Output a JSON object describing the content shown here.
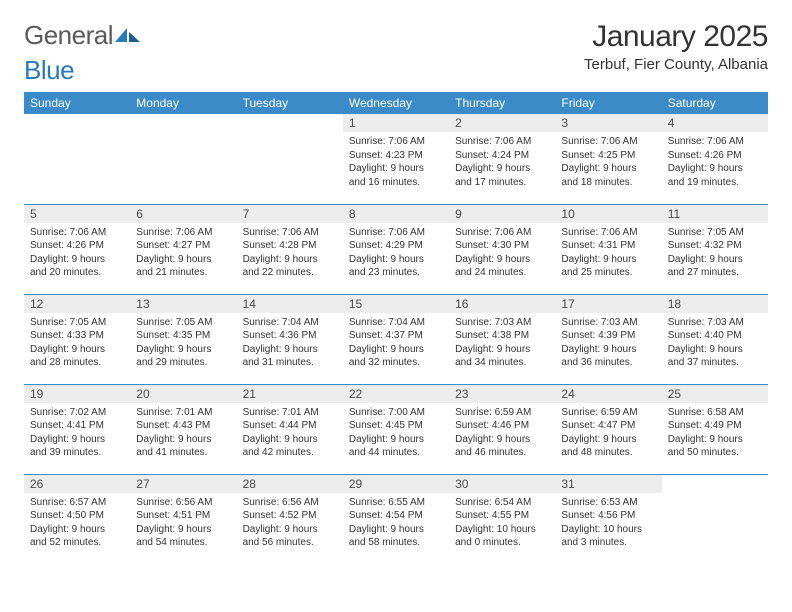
{
  "logo": {
    "word1": "General",
    "word2": "Blue"
  },
  "title": "January 2025",
  "location": "Terbuf, Fier County, Albania",
  "colors": {
    "header_bg": "#3b8bc9",
    "header_fg": "#ffffff",
    "daynum_bg": "#ececec",
    "daynum_fg": "#4a4a4a",
    "text": "#333333",
    "rule": "#3b8bc9",
    "logo_gray": "#5a5a5a",
    "logo_blue": "#2a7ab9"
  },
  "days_of_week": [
    "Sunday",
    "Monday",
    "Tuesday",
    "Wednesday",
    "Thursday",
    "Friday",
    "Saturday"
  ],
  "grid": {
    "first_weekday_index": 3,
    "num_days": 31
  },
  "days": {
    "1": {
      "sunrise": "7:06 AM",
      "sunset": "4:23 PM",
      "daylight": "9 hours and 16 minutes."
    },
    "2": {
      "sunrise": "7:06 AM",
      "sunset": "4:24 PM",
      "daylight": "9 hours and 17 minutes."
    },
    "3": {
      "sunrise": "7:06 AM",
      "sunset": "4:25 PM",
      "daylight": "9 hours and 18 minutes."
    },
    "4": {
      "sunrise": "7:06 AM",
      "sunset": "4:26 PM",
      "daylight": "9 hours and 19 minutes."
    },
    "5": {
      "sunrise": "7:06 AM",
      "sunset": "4:26 PM",
      "daylight": "9 hours and 20 minutes."
    },
    "6": {
      "sunrise": "7:06 AM",
      "sunset": "4:27 PM",
      "daylight": "9 hours and 21 minutes."
    },
    "7": {
      "sunrise": "7:06 AM",
      "sunset": "4:28 PM",
      "daylight": "9 hours and 22 minutes."
    },
    "8": {
      "sunrise": "7:06 AM",
      "sunset": "4:29 PM",
      "daylight": "9 hours and 23 minutes."
    },
    "9": {
      "sunrise": "7:06 AM",
      "sunset": "4:30 PM",
      "daylight": "9 hours and 24 minutes."
    },
    "10": {
      "sunrise": "7:06 AM",
      "sunset": "4:31 PM",
      "daylight": "9 hours and 25 minutes."
    },
    "11": {
      "sunrise": "7:05 AM",
      "sunset": "4:32 PM",
      "daylight": "9 hours and 27 minutes."
    },
    "12": {
      "sunrise": "7:05 AM",
      "sunset": "4:33 PM",
      "daylight": "9 hours and 28 minutes."
    },
    "13": {
      "sunrise": "7:05 AM",
      "sunset": "4:35 PM",
      "daylight": "9 hours and 29 minutes."
    },
    "14": {
      "sunrise": "7:04 AM",
      "sunset": "4:36 PM",
      "daylight": "9 hours and 31 minutes."
    },
    "15": {
      "sunrise": "7:04 AM",
      "sunset": "4:37 PM",
      "daylight": "9 hours and 32 minutes."
    },
    "16": {
      "sunrise": "7:03 AM",
      "sunset": "4:38 PM",
      "daylight": "9 hours and 34 minutes."
    },
    "17": {
      "sunrise": "7:03 AM",
      "sunset": "4:39 PM",
      "daylight": "9 hours and 36 minutes."
    },
    "18": {
      "sunrise": "7:03 AM",
      "sunset": "4:40 PM",
      "daylight": "9 hours and 37 minutes."
    },
    "19": {
      "sunrise": "7:02 AM",
      "sunset": "4:41 PM",
      "daylight": "9 hours and 39 minutes."
    },
    "20": {
      "sunrise": "7:01 AM",
      "sunset": "4:43 PM",
      "daylight": "9 hours and 41 minutes."
    },
    "21": {
      "sunrise": "7:01 AM",
      "sunset": "4:44 PM",
      "daylight": "9 hours and 42 minutes."
    },
    "22": {
      "sunrise": "7:00 AM",
      "sunset": "4:45 PM",
      "daylight": "9 hours and 44 minutes."
    },
    "23": {
      "sunrise": "6:59 AM",
      "sunset": "4:46 PM",
      "daylight": "9 hours and 46 minutes."
    },
    "24": {
      "sunrise": "6:59 AM",
      "sunset": "4:47 PM",
      "daylight": "9 hours and 48 minutes."
    },
    "25": {
      "sunrise": "6:58 AM",
      "sunset": "4:49 PM",
      "daylight": "9 hours and 50 minutes."
    },
    "26": {
      "sunrise": "6:57 AM",
      "sunset": "4:50 PM",
      "daylight": "9 hours and 52 minutes."
    },
    "27": {
      "sunrise": "6:56 AM",
      "sunset": "4:51 PM",
      "daylight": "9 hours and 54 minutes."
    },
    "28": {
      "sunrise": "6:56 AM",
      "sunset": "4:52 PM",
      "daylight": "9 hours and 56 minutes."
    },
    "29": {
      "sunrise": "6:55 AM",
      "sunset": "4:54 PM",
      "daylight": "9 hours and 58 minutes."
    },
    "30": {
      "sunrise": "6:54 AM",
      "sunset": "4:55 PM",
      "daylight": "10 hours and 0 minutes."
    },
    "31": {
      "sunrise": "6:53 AM",
      "sunset": "4:56 PM",
      "daylight": "10 hours and 3 minutes."
    }
  },
  "labels": {
    "sunrise": "Sunrise:",
    "sunset": "Sunset:",
    "daylight": "Daylight:"
  }
}
